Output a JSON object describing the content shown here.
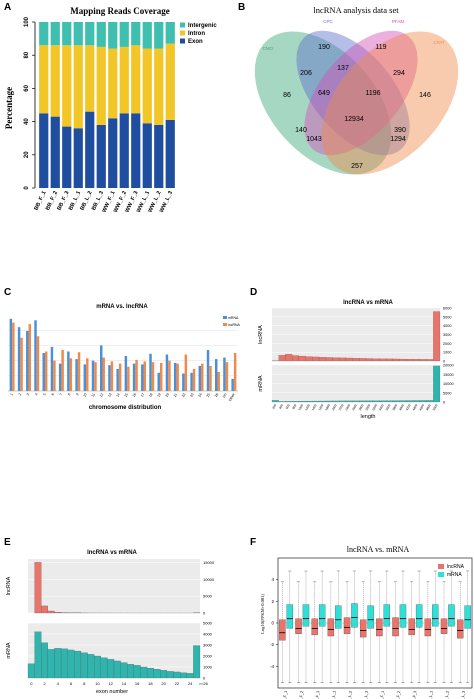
{
  "panel_labels": {
    "a": "A",
    "b": "B",
    "c": "C",
    "d": "D",
    "e": "E",
    "f": "F"
  },
  "chart_data": [
    {
      "id": "A",
      "type": "bar",
      "stacked": true,
      "title": "Mapping Reads Coverage",
      "ylabel": "Percentage",
      "ylim": [
        0,
        100
      ],
      "yticks": [
        "0",
        "20",
        "40",
        "60",
        "80",
        "100"
      ],
      "legend_position": "top-right",
      "categories": [
        "BB_F_1",
        "BB_F_2",
        "BB_F_3",
        "BB_L_1",
        "BB_L_2",
        "BB_L_3",
        "WW_F_1",
        "WW_F_2",
        "WW_F_3",
        "WW_L_1",
        "WW_L_2",
        "WW_L_3"
      ],
      "series": [
        {
          "name": "Exon",
          "color": "#1f4e9e",
          "values": [
            45,
            43,
            37,
            36,
            46,
            38,
            42,
            45,
            45,
            39,
            38,
            41
          ]
        },
        {
          "name": "Intron",
          "color": "#f2c626",
          "values": [
            41,
            43,
            49,
            50,
            40,
            47,
            42,
            40,
            41,
            45,
            46,
            46
          ]
        },
        {
          "name": "Intergenic",
          "color": "#3fbfb0",
          "values": [
            14,
            14,
            14,
            14,
            14,
            15,
            16,
            15,
            14,
            16,
            16,
            13
          ]
        }
      ],
      "legend_order": [
        "Intergenic",
        "Intron",
        "Exon"
      ]
    },
    {
      "id": "B",
      "type": "venn",
      "title": "lncRNA analysis data set",
      "sets": [
        {
          "name": "CNCI",
          "color": "#3aa67a"
        },
        {
          "name": "CPC",
          "color": "#5b6fc9"
        },
        {
          "name": "PFAM",
          "color": "#d44fb6"
        },
        {
          "name": "CPAT",
          "color": "#f08a4b"
        }
      ],
      "regions": [
        {
          "label": "86"
        },
        {
          "label": "190"
        },
        {
          "label": "119"
        },
        {
          "label": "146"
        },
        {
          "label": "206"
        },
        {
          "label": "137"
        },
        {
          "label": "294"
        },
        {
          "label": "649"
        },
        {
          "label": "1196"
        },
        {
          "label": "12934"
        },
        {
          "label": "140"
        },
        {
          "label": "390"
        },
        {
          "label": "1043"
        },
        {
          "label": "1294"
        },
        {
          "label": "257"
        }
      ]
    },
    {
      "id": "C",
      "type": "bar",
      "title": "mRNA vs. lncRNA",
      "xlabel": "chromosome distribution",
      "legend_position": "top-right",
      "categories": [
        "1",
        "2",
        "3",
        "4",
        "5",
        "6",
        "7",
        "8",
        "9",
        "10",
        "11",
        "12",
        "13",
        "14",
        "15",
        "16",
        "17",
        "18",
        "19",
        "20",
        "21",
        "22",
        "23",
        "24",
        "25",
        "26",
        "Un",
        "Other"
      ],
      "series": [
        {
          "name": "mRNA",
          "color": "#4b8fd6",
          "values": [
            9.5,
            8.4,
            7.9,
            9.3,
            5.0,
            5.8,
            3.6,
            5.2,
            4.2,
            3.5,
            4.0,
            6.0,
            3.4,
            2.9,
            4.6,
            3.6,
            3.5,
            4.9,
            2.4,
            4.8,
            3.7,
            2.3,
            2.4,
            3.3,
            5.4,
            4.2,
            4.4,
            1.6
          ]
        },
        {
          "name": "lncRNA",
          "color": "#f08a4b",
          "values": [
            9.0,
            7.0,
            8.8,
            7.2,
            5.2,
            4.0,
            5.4,
            4.3,
            5.1,
            4.3,
            3.8,
            4.4,
            3.9,
            3.6,
            3.2,
            4.1,
            3.9,
            3.8,
            3.7,
            4.0,
            3.6,
            4.8,
            2.9,
            3.6,
            3.3,
            2.5,
            3.8,
            5.0
          ]
        }
      ]
    },
    {
      "id": "D",
      "type": "bar",
      "title": "lncRNA vs mRNA",
      "xlabel": "length",
      "facets": [
        {
          "name": "lncRNA",
          "color": "#e8746b",
          "ylim": [
            0,
            6000
          ],
          "yticks": [
            "0",
            "1000",
            "2000",
            "3000",
            "4000",
            "5000",
            "6000"
          ],
          "values": [
            30,
            650,
            780,
            620,
            560,
            500,
            460,
            430,
            400,
            380,
            360,
            340,
            320,
            300,
            280,
            260,
            250,
            240,
            230,
            220,
            210,
            200,
            190,
            180,
            5600
          ]
        },
        {
          "name": "mRNA",
          "color": "#2fb5ad",
          "ylim": [
            0,
            20000
          ],
          "yticks": [
            "0",
            "5000",
            "10000",
            "15000",
            "20000"
          ],
          "values": [
            900,
            300,
            350,
            400,
            450,
            500,
            520,
            540,
            560,
            580,
            600,
            620,
            640,
            660,
            680,
            700,
            720,
            740,
            760,
            780,
            800,
            820,
            840,
            860,
            19500
          ]
        }
      ]
    },
    {
      "id": "E",
      "type": "bar",
      "title": "lncRNA vs mRNA",
      "xlabel": "exon number",
      "xticks": [
        "0",
        "2",
        "4",
        "6",
        "8",
        "10",
        "12",
        "14",
        "16",
        "18",
        "20",
        "22",
        "24",
        ">=26"
      ],
      "facets": [
        {
          "name": "lncRNA",
          "color": "#e8746b",
          "ylim": [
            0,
            16000
          ],
          "yticks": [
            "0",
            "5000",
            "10000",
            "15000"
          ],
          "values": [
            0,
            15000,
            2100,
            600,
            250,
            120,
            60,
            40,
            30,
            20,
            15,
            10,
            8,
            6,
            5,
            4,
            4,
            3,
            3,
            3,
            2,
            2,
            2,
            2,
            2,
            60
          ]
        },
        {
          "name": "mRNA",
          "color": "#2fb5ad",
          "ylim": [
            0,
            5000
          ],
          "yticks": [
            "0",
            "1000",
            "2000",
            "3000",
            "4000",
            "5000"
          ],
          "values": [
            1300,
            4200,
            3200,
            2600,
            2700,
            2650,
            2550,
            2450,
            2300,
            2150,
            2000,
            1850,
            1700,
            1550,
            1400,
            1250,
            1150,
            1000,
            900,
            800,
            700,
            600,
            550,
            480,
            420,
            2950
          ]
        }
      ]
    },
    {
      "id": "F",
      "type": "boxplot",
      "title": "lncRNA vs. mRNA",
      "ylabel": "Log10(FPKM+0.001)",
      "ylim": [
        -6,
        6
      ],
      "yticks": [
        "-4",
        "-2",
        "0",
        "2",
        "4"
      ],
      "legend_position": "top-right",
      "categories": [
        "BB_F_1",
        "BB_F_2",
        "BB_F_3",
        "BB_L_1",
        "BB_L_2",
        "BB_L_3",
        "WW_F_1",
        "WW_F_2",
        "WW_F_3",
        "WW_L_1",
        "WW_L_2",
        "WW_L_3"
      ],
      "series": [
        {
          "name": "lncRNA",
          "color": "#e8746b",
          "boxes": [
            [
              -1.6,
              -0.9,
              -0.3,
              0.3
            ],
            [
              -1.0,
              -0.5,
              -0.1,
              0.4
            ],
            [
              -1.1,
              -0.5,
              0.0,
              0.4
            ],
            [
              -1.2,
              -0.6,
              -0.1,
              0.4
            ],
            [
              -1.0,
              -0.4,
              0.0,
              0.5
            ],
            [
              -1.3,
              -0.7,
              -0.2,
              0.3
            ],
            [
              -1.2,
              -0.6,
              -0.1,
              0.4
            ],
            [
              -1.2,
              -0.5,
              0.0,
              0.5
            ],
            [
              -1.1,
              -0.6,
              -0.1,
              0.4
            ],
            [
              -1.2,
              -0.6,
              -0.1,
              0.4
            ],
            [
              -1.0,
              -0.5,
              0.0,
              0.4
            ],
            [
              -1.4,
              -0.7,
              -0.2,
              0.3
            ]
          ],
          "whisker_low": -5.5,
          "whisker_high": 3.8
        },
        {
          "name": "mRNA",
          "color": "#2ee0d8",
          "boxes": [
            [
              -0.5,
              0.4,
              1.1,
              1.7
            ],
            [
              -0.3,
              0.4,
              1.1,
              1.7
            ],
            [
              -0.3,
              0.4,
              1.1,
              1.7
            ],
            [
              -0.5,
              0.3,
              1.1,
              1.6
            ],
            [
              -0.4,
              0.5,
              1.2,
              1.8
            ],
            [
              -0.5,
              0.3,
              1.0,
              1.6
            ],
            [
              -0.3,
              0.4,
              1.1,
              1.7
            ],
            [
              -0.4,
              0.4,
              1.1,
              1.7
            ],
            [
              -0.4,
              0.4,
              1.1,
              1.7
            ],
            [
              -0.3,
              0.4,
              1.1,
              1.7
            ],
            [
              -0.3,
              0.4,
              1.1,
              1.7
            ],
            [
              -0.5,
              0.3,
              1.0,
              1.6
            ]
          ],
          "whisker_low": -5.5,
          "whisker_high": 4.8
        }
      ]
    }
  ]
}
